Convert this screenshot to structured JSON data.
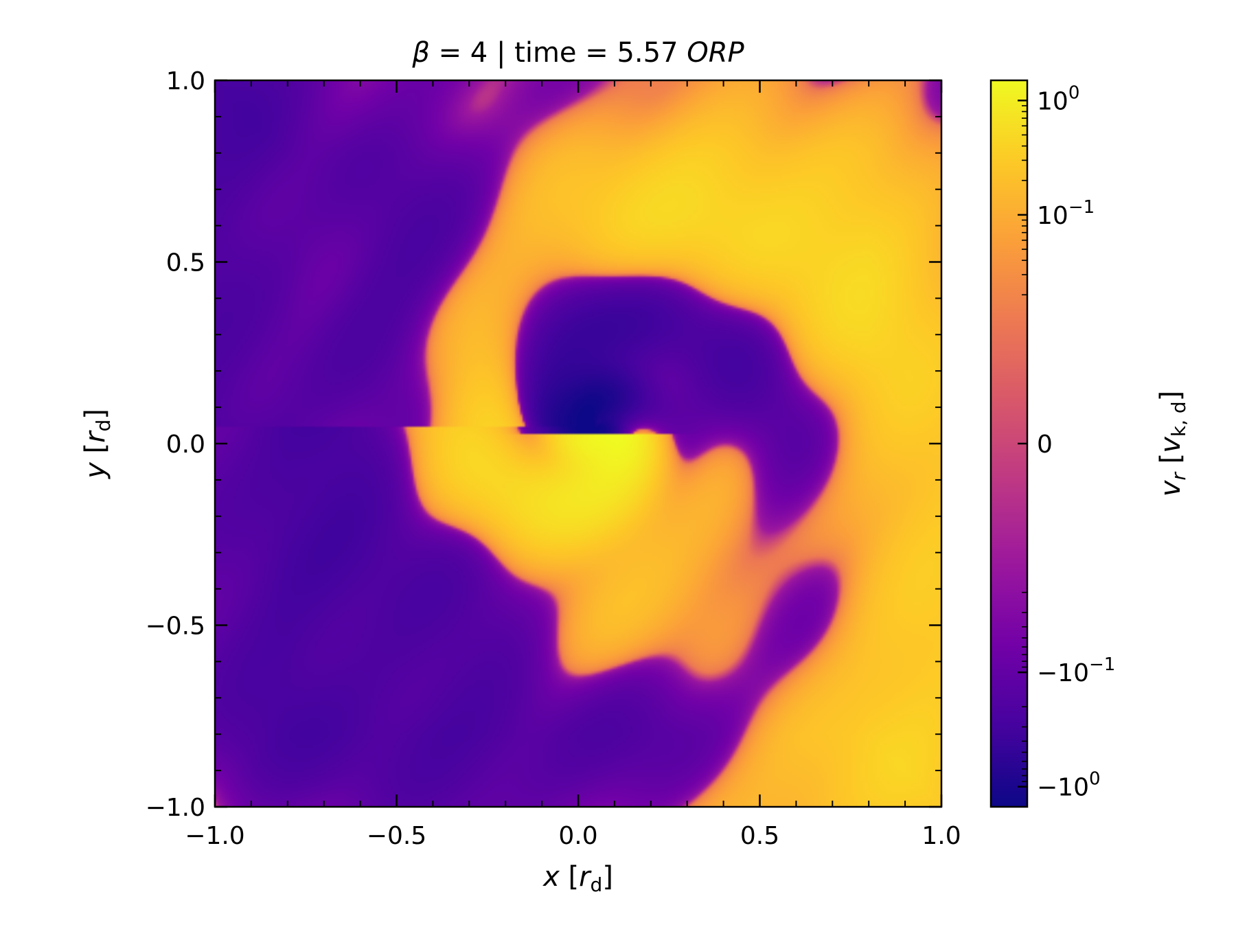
{
  "chart_data": {
    "type": "heatmap",
    "title": {
      "parts": [
        {
          "text": "β",
          "italic": true
        },
        {
          "text": " = 4 | time = 5.57 ",
          "italic": false
        },
        {
          "text": "ORP",
          "italic": true
        }
      ]
    },
    "xlabel": {
      "var": "x",
      "unit_prefix": " [",
      "unit_var": "r",
      "unit_sub": "d",
      "unit_suffix": "]"
    },
    "ylabel": {
      "var": "y",
      "unit_prefix": " [",
      "unit_var": "r",
      "unit_sub": "d",
      "unit_suffix": "]"
    },
    "xlim": [
      -1.0,
      1.0
    ],
    "ylim": [
      -1.0,
      1.0
    ],
    "x_ticks": [
      {
        "value": -1.0,
        "label": "−1.0"
      },
      {
        "value": -0.5,
        "label": "−0.5"
      },
      {
        "value": 0.0,
        "label": "0.0"
      },
      {
        "value": 0.5,
        "label": "0.5"
      },
      {
        "value": 1.0,
        "label": "1.0"
      }
    ],
    "y_ticks": [
      {
        "value": -1.0,
        "label": "−1.0"
      },
      {
        "value": -0.5,
        "label": "−0.5"
      },
      {
        "value": 0.0,
        "label": "0.0"
      },
      {
        "value": 0.5,
        "label": "0.5"
      },
      {
        "value": 1.0,
        "label": "1.0"
      }
    ],
    "minor_tick_step": 0.1,
    "colormap": "plasma",
    "colormap_stops": [
      "#0d0887",
      "#46039f",
      "#7201a8",
      "#9c179e",
      "#bd3786",
      "#d8576b",
      "#ed7953",
      "#fb9f3a",
      "#fdca26",
      "#f0f921"
    ],
    "colorbar": {
      "scale": "symlog",
      "linthresh": 0.01,
      "vmin": -1.5,
      "vmax": 1.5,
      "ticks": [
        {
          "value": 1.0,
          "base": "10",
          "exp": "0",
          "sign": ""
        },
        {
          "value": 0.1,
          "base": "10",
          "exp": "−1",
          "sign": ""
        },
        {
          "value": 0.0,
          "base": "0",
          "exp": "",
          "sign": ""
        },
        {
          "value": -0.1,
          "base": "10",
          "exp": "−1",
          "sign": "−"
        },
        {
          "value": -1.0,
          "base": "10",
          "exp": "0",
          "sign": "−"
        }
      ],
      "label": {
        "var": "v",
        "var_sub": "r",
        "unit_var": "v",
        "unit_sub": "k, d"
      }
    },
    "field": {
      "description_values": "radial velocity field, outflow (positive) concentrated in lower-right half, inflow (negative) in upper-left half with strong negative core near origin",
      "core_center": [
        0.05,
        0.05
      ],
      "peak_positive": 1.3,
      "peak_negative": -1.5
    }
  }
}
